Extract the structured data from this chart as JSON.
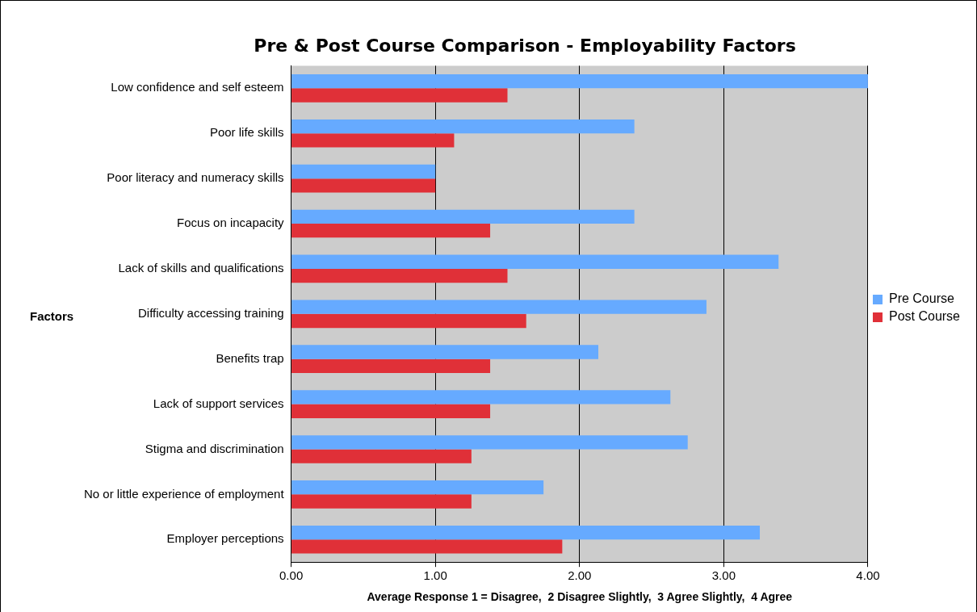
{
  "chart_data": {
    "type": "bar",
    "orientation": "horizontal",
    "title": "Pre & Post Course Comparison - Employability Factors",
    "xlabel": "Average Response 1 = Disagree,  2 Disagree Slightly,  3 Agree Slightly,  4 Agree",
    "ylabel": "Factors",
    "categories": [
      "Low confidence and self esteem",
      "Poor life skills",
      "Poor literacy and numeracy skills",
      "Focus on incapacity",
      "Lack of skills and qualifications",
      "Difficulty accessing training",
      "Benefits trap",
      "Lack of support services",
      "Stigma and discrimination",
      "No or little experience of employment",
      "Employer perceptions"
    ],
    "series": [
      {
        "name": "Pre Course",
        "color": "#66aaff",
        "values": [
          4.0,
          2.38,
          1.0,
          2.38,
          3.38,
          2.88,
          2.13,
          2.63,
          2.75,
          1.75,
          3.25
        ]
      },
      {
        "name": "Post Course",
        "color": "#e03038",
        "values": [
          1.5,
          1.13,
          1.0,
          1.38,
          1.5,
          1.63,
          1.38,
          1.38,
          1.25,
          1.25,
          1.88
        ]
      }
    ],
    "xlim": [
      0,
      4
    ],
    "xticks": [
      {
        "value": 0,
        "label": "0.00"
      },
      {
        "value": 1,
        "label": "1.00"
      },
      {
        "value": 2,
        "label": "2.00"
      },
      {
        "value": 3,
        "label": "3.00"
      },
      {
        "value": 4,
        "label": "4.00"
      }
    ],
    "grid": "x",
    "legend": "right"
  }
}
